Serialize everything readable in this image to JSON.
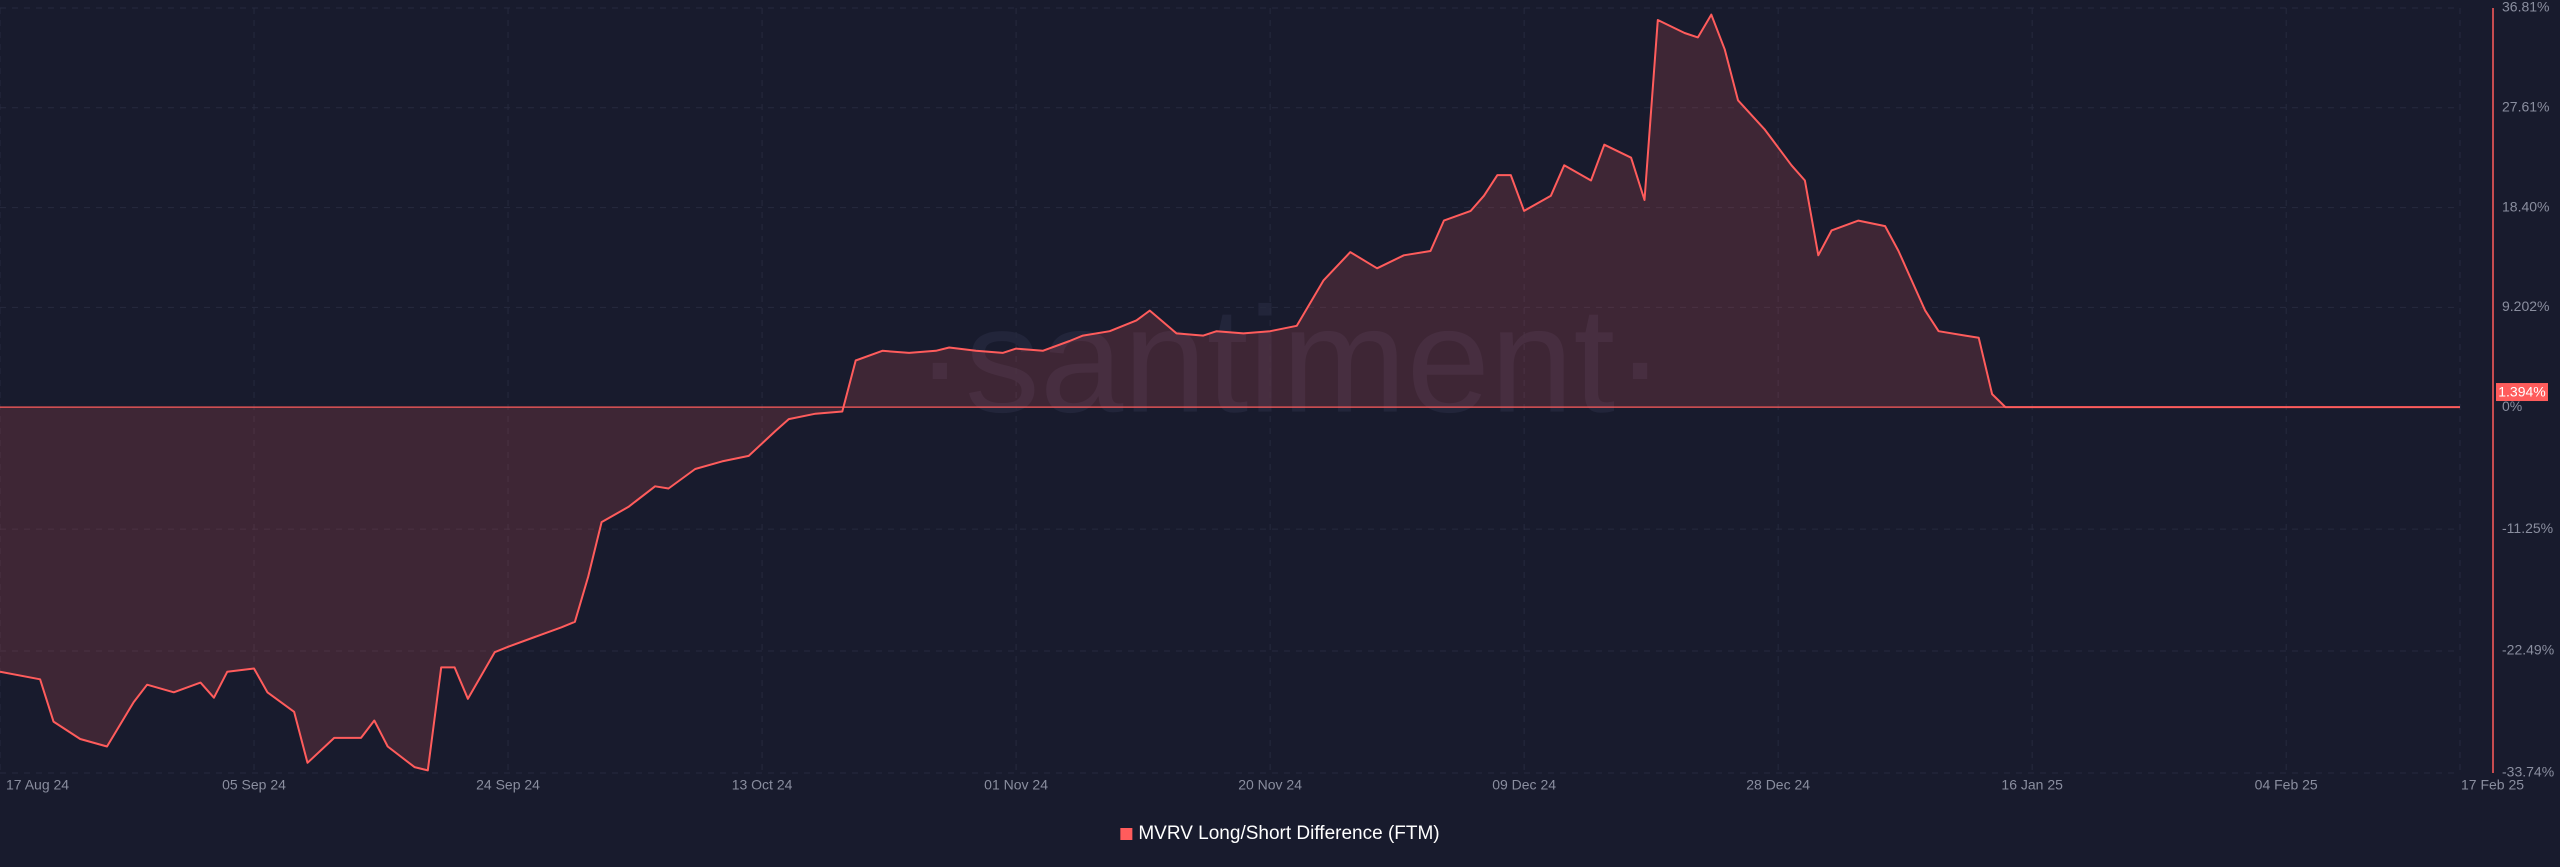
{
  "chart_data": {
    "type": "line",
    "watermark": "·santiment·",
    "x": [
      "2024-08-17",
      "2024-08-20",
      "2024-08-21",
      "2024-08-23",
      "2024-08-25",
      "2024-08-27",
      "2024-08-28",
      "2024-08-30",
      "2024-09-01",
      "2024-09-02",
      "2024-09-03",
      "2024-09-05",
      "2024-09-06",
      "2024-09-08",
      "2024-09-09",
      "2024-09-11",
      "2024-09-13",
      "2024-09-14",
      "2024-09-15",
      "2024-09-17",
      "2024-09-18",
      "2024-09-19",
      "2024-09-20",
      "2024-09-21",
      "2024-09-23",
      "2024-09-24",
      "2024-09-26",
      "2024-09-28",
      "2024-09-29",
      "2024-09-30",
      "2024-10-01",
      "2024-10-03",
      "2024-10-05",
      "2024-10-06",
      "2024-10-08",
      "2024-10-10",
      "2024-10-12",
      "2024-10-14",
      "2024-10-15",
      "2024-10-17",
      "2024-10-19",
      "2024-10-20",
      "2024-10-22",
      "2024-10-24",
      "2024-10-26",
      "2024-10-27",
      "2024-10-29",
      "2024-10-31",
      "2024-11-01",
      "2024-11-03",
      "2024-11-05",
      "2024-11-06",
      "2024-11-08",
      "2024-11-10",
      "2024-11-11",
      "2024-11-13",
      "2024-11-15",
      "2024-11-16",
      "2024-11-18",
      "2024-11-20",
      "2024-11-22",
      "2024-11-24",
      "2024-11-26",
      "2024-11-28",
      "2024-11-30",
      "2024-12-02",
      "2024-12-03",
      "2024-12-05",
      "2024-12-06",
      "2024-12-07",
      "2024-12-08",
      "2024-12-09",
      "2024-12-11",
      "2024-12-12",
      "2024-12-14",
      "2024-12-15",
      "2024-12-17",
      "2024-12-18",
      "2024-12-19",
      "2024-12-21",
      "2024-12-22",
      "2024-12-23",
      "2024-12-24",
      "2024-12-25",
      "2024-12-27",
      "2024-12-29",
      "2024-12-30",
      "2024-12-31",
      "2025-01-01",
      "2025-01-03",
      "2025-01-05",
      "2025-01-06",
      "2025-01-08",
      "2025-01-09",
      "2025-01-11",
      "2025-01-12",
      "2025-01-13",
      "2025-01-14",
      "2025-02-17"
    ],
    "series": [
      {
        "name": "MVRV Long/Short Difference (FTM)",
        "color": "#ff5c5c",
        "values": [
          -24.4,
          -25.1,
          -29,
          -30.6,
          -31.3,
          -27.2,
          -25.6,
          -26.3,
          -25.4,
          -26.8,
          -24.4,
          -24.1,
          -26.3,
          -28.1,
          -32.8,
          -30.5,
          -30.5,
          -28.9,
          -31.3,
          -33.2,
          -33.5,
          -24,
          -24,
          -26.9,
          -22.6,
          -22.1,
          -21.2,
          -20.3,
          -19.8,
          -15.6,
          -10.6,
          -9.2,
          -7.3,
          -7.5,
          -5.7,
          -5.0,
          -4.5,
          -2.2,
          -1.1,
          -0.6,
          -0.4,
          4.3,
          5.2,
          5.0,
          5.2,
          5.5,
          5.2,
          5.0,
          5.4,
          5.2,
          6.1,
          6.6,
          7.0,
          8.0,
          8.9,
          6.8,
          6.6,
          7.0,
          6.8,
          7.0,
          7.5,
          11.7,
          14.3,
          12.8,
          14.0,
          14.4,
          17.2,
          18.1,
          19.5,
          21.4,
          21.4,
          18.1,
          19.5,
          22.3,
          20.9,
          24.2,
          23.0,
          19.1,
          35.7,
          34.5,
          34.1,
          36.2,
          33.0,
          28.3,
          25.6,
          22.3,
          20.9,
          14.0,
          16.3,
          17.2,
          16.7,
          14.4,
          8.9,
          7.0,
          6.6,
          6.4,
          1.2,
          0,
          0
        ]
      }
    ],
    "annotations": [
      {
        "value": 1.394,
        "label": "1.394%"
      }
    ],
    "xlim": [
      "2024-08-17",
      "2025-02-17"
    ],
    "xticks": [
      {
        "value": "2024-08-17",
        "label": "17 Aug 24"
      },
      {
        "value": "2024-09-05",
        "label": "05 Sep 24"
      },
      {
        "value": "2024-09-24",
        "label": "24 Sep 24"
      },
      {
        "value": "2024-10-13",
        "label": "13 Oct 24"
      },
      {
        "value": "2024-11-01",
        "label": "01 Nov 24"
      },
      {
        "value": "2024-11-20",
        "label": "20 Nov 24"
      },
      {
        "value": "2024-12-09",
        "label": "09 Dec 24"
      },
      {
        "value": "2024-12-28",
        "label": "28 Dec 24"
      },
      {
        "value": "2025-01-16",
        "label": "16 Jan 25"
      },
      {
        "value": "2025-02-04",
        "label": "04 Feb 25"
      },
      {
        "value": "2025-02-17",
        "label": "17 Feb 25"
      }
    ],
    "ylim": [
      -33.74,
      36.81
    ],
    "yticks": [
      {
        "value": 36.81,
        "label": "36.81%"
      },
      {
        "value": 27.61,
        "label": "27.61%"
      },
      {
        "value": 18.4,
        "label": "18.40%"
      },
      {
        "value": 9.202,
        "label": "9.202%"
      },
      {
        "value": 0,
        "label": "0%"
      },
      {
        "value": -11.25,
        "label": "-11.25%"
      },
      {
        "value": -22.49,
        "label": "-22.49%"
      },
      {
        "value": -33.74,
        "label": "-33.74%"
      }
    ],
    "grid": true,
    "legend": "bottom"
  }
}
